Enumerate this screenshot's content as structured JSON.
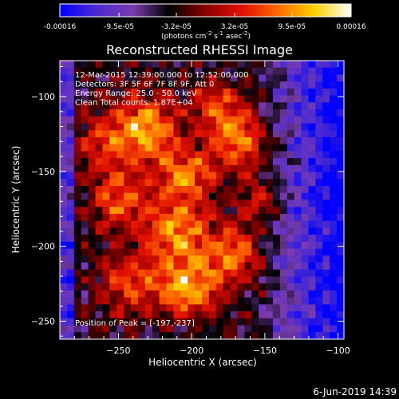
{
  "chart_data": {
    "type": "heatmap",
    "title": "Reconstructed RHESSI Image",
    "xlabel": "Heliocentric X (arcsec)",
    "ylabel": "Heliocentric Y (arcsec)",
    "xlim": [
      -290,
      -96
    ],
    "ylim": [
      -262,
      -76
    ],
    "xticks": [
      -250,
      -200,
      -150,
      -100
    ],
    "yticks": [
      -100,
      -150,
      -200,
      -250
    ],
    "colorbar": {
      "ticks": [
        "-0.00016",
        "-9.5e-05",
        "-3.2e-05",
        "3.2e-05",
        "9.5e-05",
        "0.00016"
      ],
      "tick_values": [
        -0.00016,
        -9.5e-05,
        -3.2e-05,
        3.2e-05,
        9.5e-05,
        0.00016
      ],
      "range": [
        -0.00016,
        0.00016
      ],
      "unit_parts": [
        "(photons cm",
        "-2",
        " s",
        "-1",
        " asec",
        "-2",
        ")"
      ],
      "colors": [
        "#0000ff",
        "#4b2ad0",
        "#7a3cb0",
        "#000000",
        "#8c0000",
        "#e01000",
        "#ff6a00",
        "#ffd000",
        "#ffffff"
      ]
    },
    "annotations": [
      "12-Mar-2015 12:39:00.000 to 12:52:00.000",
      "Detectors: 3F 5F 6F 7F 8F 9F, Att 0",
      "Energy Range: 25.0 - 50.0 keV",
      "Clean    Total counts: 1.87E+04"
    ],
    "peak_label": "Position of Peak = [-197,-237]",
    "peak": [
      -197,
      -237
    ],
    "date_stamp": "6-Jun-2019 14:39"
  }
}
